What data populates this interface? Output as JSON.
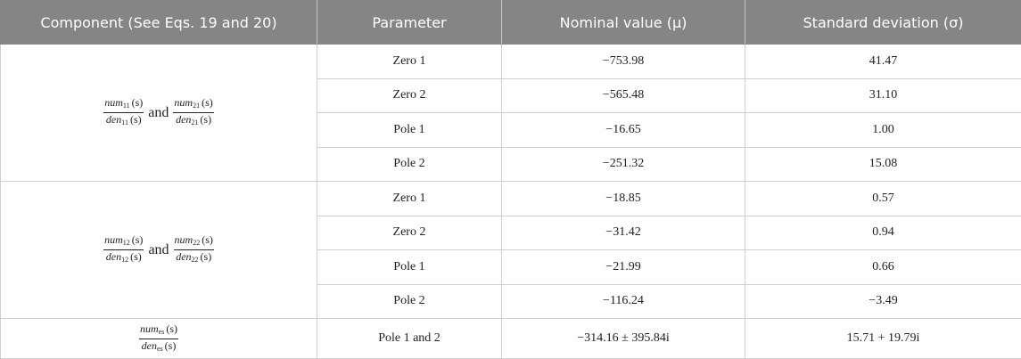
{
  "table": {
    "header": [
      "Component (See Eqs. 19 and 20)",
      "Parameter",
      "Nominal value (μ)",
      "Standard deviation (σ)"
    ],
    "groups": [
      {
        "component": {
          "fractions": [
            {
              "num": [
                "num",
                "11",
                "(s)"
              ],
              "den": [
                "den",
                "11",
                "(s)"
              ]
            },
            {
              "num": [
                "num",
                "21",
                "(s)"
              ],
              "den": [
                "den",
                "21",
                "(s)"
              ]
            }
          ],
          "connector": "and"
        },
        "rows": [
          [
            "Zero 1",
            "−753.98",
            "41.47"
          ],
          [
            "Zero 2",
            "−565.48",
            "31.10"
          ],
          [
            "Pole 1",
            "−16.65",
            "1.00"
          ],
          [
            "Pole 2",
            "−251.32",
            "15.08"
          ]
        ]
      },
      {
        "component": {
          "fractions": [
            {
              "num": [
                "num",
                "12",
                "(s)"
              ],
              "den": [
                "den",
                "12",
                "(s)"
              ]
            },
            {
              "num": [
                "num",
                "22",
                "(s)"
              ],
              "den": [
                "den",
                "22",
                "(s)"
              ]
            }
          ],
          "connector": "and"
        },
        "rows": [
          [
            "Zero 1",
            "−18.85",
            "0.57"
          ],
          [
            "Zero 2",
            "−31.42",
            "0.94"
          ],
          [
            "Pole 1",
            "−21.99",
            "0.66"
          ],
          [
            "Pole 2",
            "−116.24",
            "−3.49"
          ]
        ]
      },
      {
        "component": {
          "fractions": [
            {
              "num": [
                "num",
                "es",
                "(s)"
              ],
              "den": [
                "den",
                "es",
                "(s)"
              ]
            }
          ]
        },
        "rows": [
          [
            "Pole 1 and 2",
            "−314.16 ± 395.84i",
            "15.71 + 19.79i"
          ]
        ]
      }
    ]
  }
}
